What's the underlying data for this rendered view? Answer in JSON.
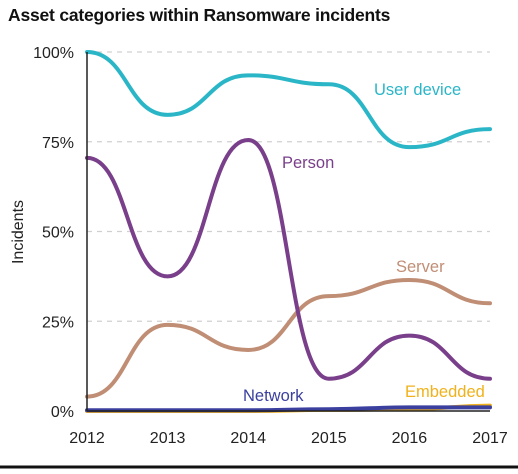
{
  "title": "Asset categories within Ransomware incidents",
  "chart_data": {
    "type": "line",
    "title": "Asset categories within Ransomware incidents",
    "xlabel": "",
    "ylabel": "Incidents",
    "x": [
      2012,
      2013,
      2014,
      2015,
      2016,
      2017
    ],
    "x_tick_labels": [
      "2012",
      "2013",
      "2014",
      "2015",
      "2016",
      "2017"
    ],
    "y_tick_labels": [
      "0%",
      "25%",
      "50%",
      "75%",
      "100%"
    ],
    "y_ticks": [
      0,
      25,
      50,
      75,
      100
    ],
    "ylim": [
      0,
      100
    ],
    "grid": "horizontal dashed",
    "series": [
      {
        "name": "User device",
        "values": [
          100,
          82.5,
          93.5,
          91,
          73.5,
          78.5
        ],
        "color": "#2bb6c8"
      },
      {
        "name": "Person",
        "values": [
          70.5,
          37.5,
          75.5,
          9,
          21,
          9
        ],
        "color": "#7a3f8a"
      },
      {
        "name": "Server",
        "values": [
          4,
          24,
          17,
          32,
          36.5,
          30
        ],
        "color": "#c08e75"
      },
      {
        "name": "Network",
        "values": [
          0.2,
          0.2,
          0.2,
          0.5,
          1,
          1
        ],
        "color": "#3b3f9e"
      },
      {
        "name": "Embedded",
        "values": [
          0,
          0,
          0,
          0.3,
          0.5,
          1.5
        ],
        "color": "#f0b21c"
      }
    ]
  }
}
